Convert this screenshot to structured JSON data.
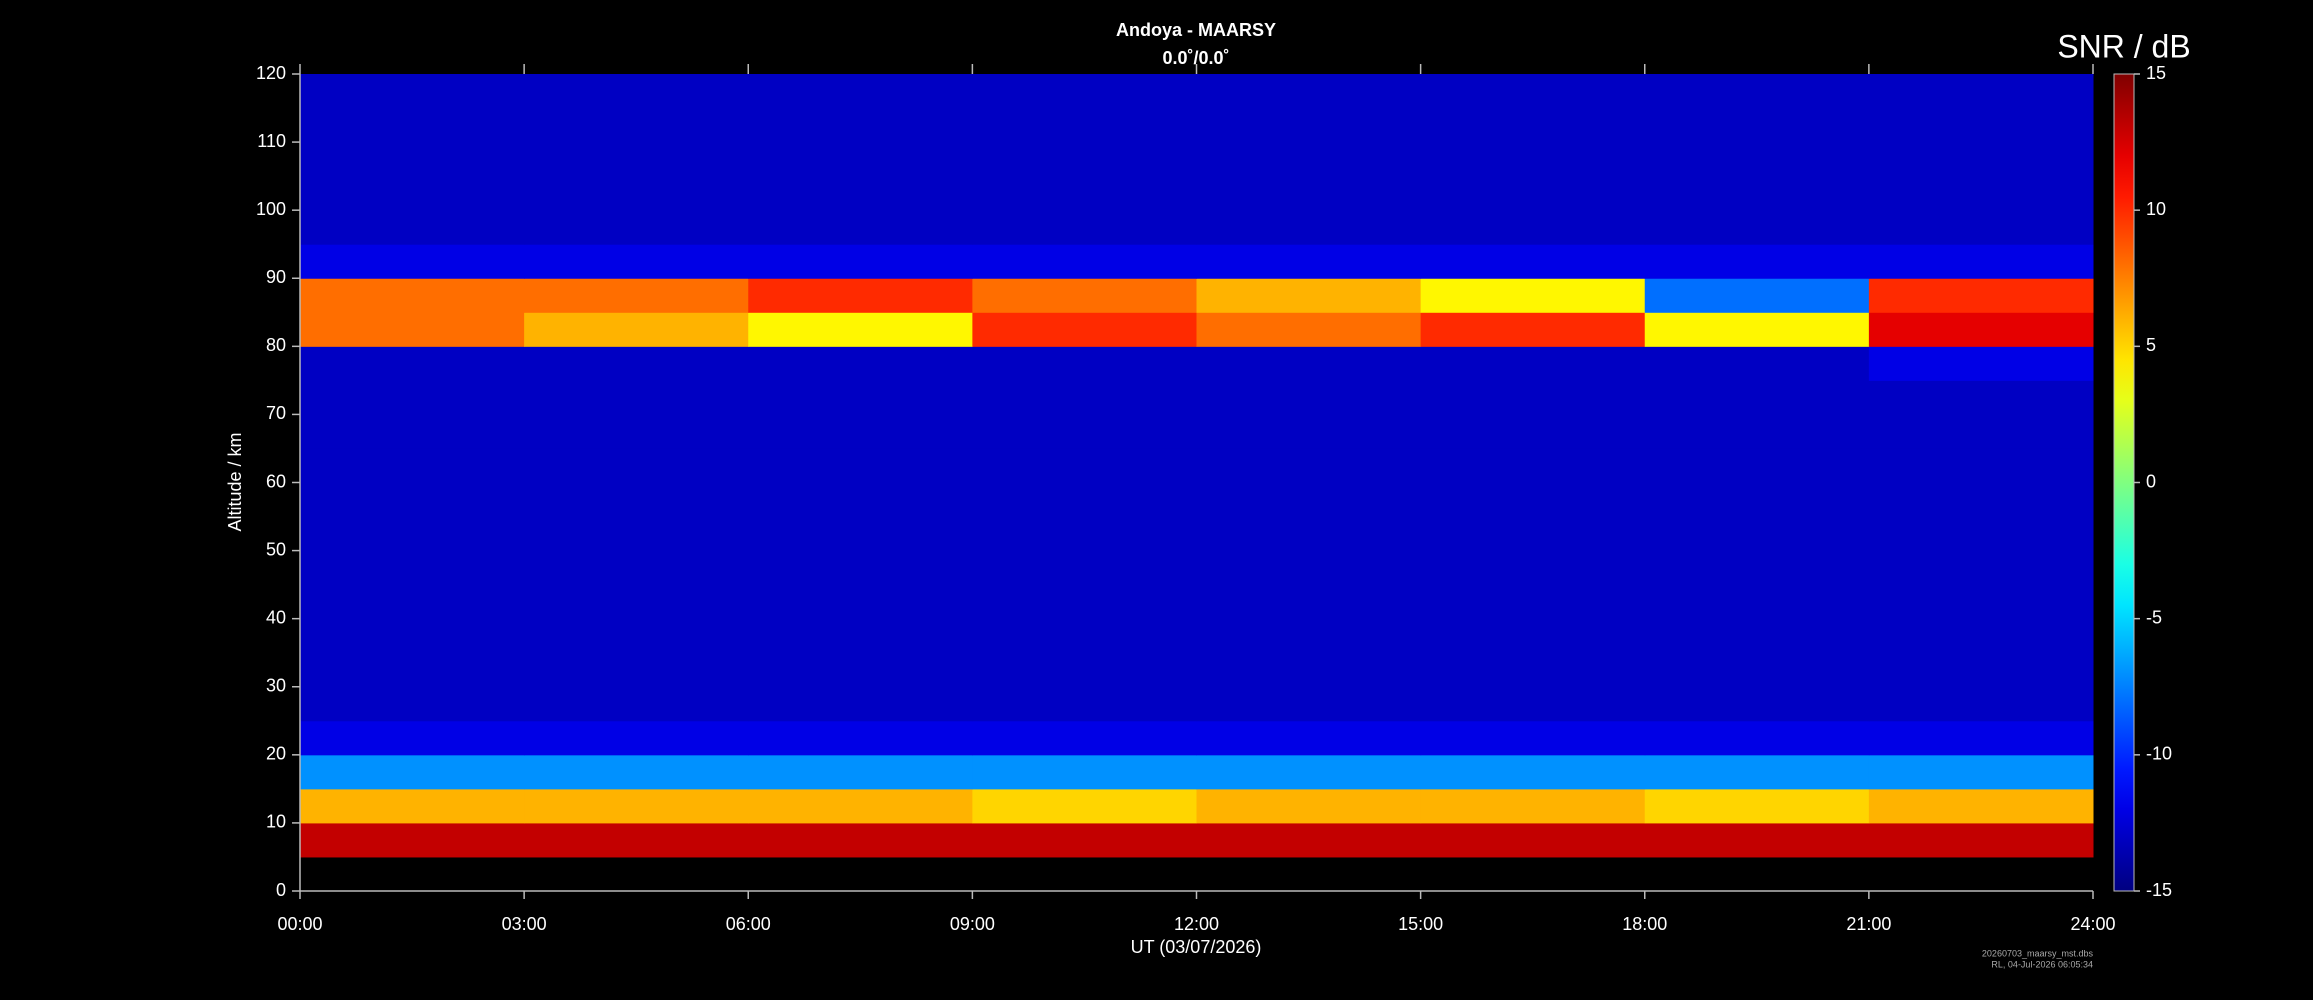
{
  "chart_data": {
    "type": "heatmap",
    "title": "Andoya - MAARSY",
    "subtitle": "0.0˚/0.0˚",
    "xlabel": "UT (03/07/2026)",
    "ylabel": "Altitude / km",
    "colorbar_label": "SNR / dB",
    "footer": [
      "20260703_maarsy_mst.dbs",
      "RL, 04-Jul-2026 06:05:34"
    ],
    "colormap": "jet",
    "x": [
      0,
      3,
      6,
      9,
      12,
      15,
      18,
      21,
      24
    ],
    "y": [
      0,
      5,
      10,
      15,
      20,
      25,
      30,
      35,
      40,
      45,
      50,
      55,
      60,
      65,
      70,
      75,
      80,
      85,
      90,
      95,
      100,
      105,
      110,
      115,
      120
    ],
    "z": [
      [
        null,
        null,
        null,
        null,
        null,
        null,
        null,
        null
      ],
      [
        13,
        13,
        13,
        13,
        13,
        13,
        13,
        13
      ],
      [
        6,
        6,
        6,
        5,
        6,
        6,
        5,
        6
      ],
      [
        -7,
        -7,
        -7,
        -7,
        -7,
        -7,
        -7,
        -7
      ],
      [
        -12,
        -12,
        -12,
        -12,
        -12,
        -12,
        -12,
        -12
      ],
      [
        -13,
        -13,
        -13,
        -13,
        -13,
        -13,
        -13,
        -13
      ],
      [
        -13,
        -13,
        -13,
        -13,
        -13,
        -13,
        -13,
        -13
      ],
      [
        -13,
        -13,
        -13,
        -13,
        -13,
        -13,
        -13,
        -13
      ],
      [
        -13,
        -13,
        -13,
        -13,
        -13,
        -13,
        -13,
        -13
      ],
      [
        -13,
        -13,
        -13,
        -13,
        -13,
        -13,
        -13,
        -13
      ],
      [
        -13,
        -13,
        -13,
        -13,
        -13,
        -13,
        -13,
        -13
      ],
      [
        -13,
        -13,
        -13,
        -13,
        -13,
        -13,
        -13,
        -13
      ],
      [
        -13,
        -13,
        -13,
        -13,
        -13,
        -13,
        -13,
        -13
      ],
      [
        -13,
        -13,
        -13,
        -13,
        -13,
        -13,
        -13,
        -13
      ],
      [
        -13,
        -13,
        -13,
        -13,
        -13,
        -13,
        -13,
        -13
      ],
      [
        -13,
        -13,
        -13,
        -13,
        -13,
        -13,
        -13,
        -12
      ],
      [
        8,
        6,
        4,
        10,
        8,
        10,
        4,
        12
      ],
      [
        8,
        8,
        10,
        8,
        6,
        4,
        -8,
        10
      ],
      [
        -12,
        -12,
        -12,
        -12,
        -12,
        -12,
        -12,
        -12
      ],
      [
        -13,
        -13,
        -13,
        -13,
        -13,
        -13,
        -13,
        -13
      ],
      [
        -13,
        -13,
        -13,
        -13,
        -13,
        -13,
        -13,
        -13
      ],
      [
        -13,
        -13,
        -13,
        -13,
        -13,
        -13,
        -13,
        -13
      ],
      [
        -13,
        -13,
        -13,
        -13,
        -13,
        -13,
        -13,
        -13
      ],
      [
        -13,
        -13,
        -13,
        -13,
        -13,
        -13,
        -13,
        -13
      ]
    ],
    "xlim": [
      0,
      24
    ],
    "xticks": [
      {
        "value": 0,
        "label": "00:00"
      },
      {
        "value": 3,
        "label": "03:00"
      },
      {
        "value": 6,
        "label": "06:00"
      },
      {
        "value": 9,
        "label": "09:00"
      },
      {
        "value": 12,
        "label": "12:00"
      },
      {
        "value": 15,
        "label": "15:00"
      },
      {
        "value": 18,
        "label": "18:00"
      },
      {
        "value": 21,
        "label": "21:00"
      },
      {
        "value": 24,
        "label": "24:00"
      }
    ],
    "ylim": [
      0,
      120
    ],
    "yticks": [
      0,
      10,
      20,
      30,
      40,
      50,
      60,
      70,
      80,
      90,
      100,
      110,
      120
    ],
    "zlim": [
      -15,
      15
    ],
    "zticks": [
      -15,
      -10,
      -5,
      0,
      5,
      10,
      15
    ],
    "grid": false
  }
}
